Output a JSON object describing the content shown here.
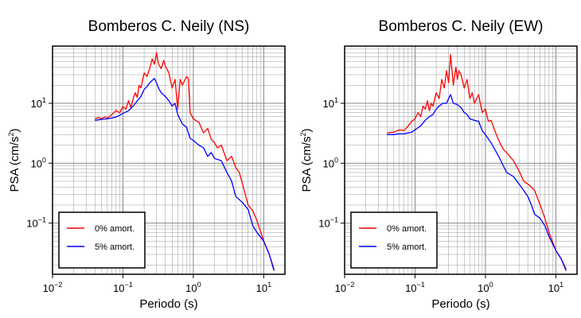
{
  "chart_data": [
    {
      "type": "line",
      "title": "Bomberos C. Neily (NS)",
      "xlabel": "Periodo (s)",
      "ylabel": "PSA (cm/s²)",
      "ylabel_main": "PSA (cm/s",
      "ylabel_sup": "2",
      "ylabel_close": ")",
      "xscale": "log",
      "yscale": "log",
      "xlim": [
        0.01,
        20
      ],
      "ylim": [
        0.014,
        90
      ],
      "grid": true,
      "legend_position": "bottom-left",
      "xticks": [
        {
          "base": "10",
          "exp": "−2",
          "value": 0.01
        },
        {
          "base": "10",
          "exp": "−1",
          "value": 0.1
        },
        {
          "base": "10",
          "exp": "0",
          "value": 1
        },
        {
          "base": "10",
          "exp": "1",
          "value": 10
        }
      ],
      "yticks": [
        {
          "base": "10",
          "exp": "−1",
          "value": 0.1
        },
        {
          "base": "10",
          "exp": "0",
          "value": 1
        },
        {
          "base": "10",
          "exp": "1",
          "value": 10
        }
      ],
      "series": [
        {
          "name": "0% amort.",
          "color": "#ff0000",
          "x": [
            0.04,
            0.045,
            0.05,
            0.055,
            0.06,
            0.07,
            0.08,
            0.09,
            0.1,
            0.11,
            0.12,
            0.13,
            0.14,
            0.15,
            0.16,
            0.17,
            0.18,
            0.2,
            0.22,
            0.24,
            0.26,
            0.28,
            0.3,
            0.32,
            0.35,
            0.38,
            0.4,
            0.45,
            0.5,
            0.55,
            0.6,
            0.65,
            0.7,
            0.8,
            0.85,
            0.9,
            1.0,
            1.2,
            1.4,
            1.6,
            1.8,
            2.0,
            2.2,
            2.5,
            3.0,
            3.5,
            4.0,
            4.5,
            5.0,
            6.0,
            7.0,
            8.0,
            10.0,
            12.0,
            14.0
          ],
          "values": [
            5.5,
            5.8,
            5.5,
            5.9,
            5.7,
            6.5,
            7.6,
            6.9,
            8.8,
            8.0,
            11.0,
            8.5,
            12.0,
            15.0,
            12.5,
            20.0,
            18.0,
            32.0,
            28.0,
            38.0,
            55.0,
            45.0,
            70.0,
            45.0,
            38.0,
            52.0,
            42.0,
            32.0,
            18.0,
            25.0,
            8.0,
            25.0,
            20.0,
            28.0,
            26.0,
            7.0,
            5.5,
            4.8,
            3.2,
            3.8,
            2.5,
            2.2,
            1.8,
            2.0,
            1.1,
            1.3,
            0.85,
            0.7,
            0.45,
            0.2,
            0.16,
            0.11,
            0.05,
            0.03,
            0.017
          ]
        },
        {
          "name": "5% amort.",
          "color": "#0000ff",
          "x": [
            0.04,
            0.05,
            0.06,
            0.07,
            0.08,
            0.09,
            0.1,
            0.12,
            0.14,
            0.16,
            0.18,
            0.2,
            0.22,
            0.24,
            0.26,
            0.28,
            0.3,
            0.32,
            0.35,
            0.4,
            0.45,
            0.5,
            0.55,
            0.6,
            0.7,
            0.8,
            0.9,
            1.0,
            1.2,
            1.4,
            1.6,
            1.8,
            2.0,
            2.5,
            3.0,
            3.5,
            4.0,
            5.0,
            6.0,
            7.0,
            8.0,
            10.0,
            12.0,
            14.0
          ],
          "values": [
            5.2,
            5.4,
            5.5,
            5.7,
            5.9,
            6.3,
            6.8,
            7.5,
            9.0,
            11.0,
            13.0,
            17.0,
            19.0,
            22.0,
            24.0,
            26.0,
            22.0,
            18.0,
            15.0,
            13.0,
            11.0,
            9.0,
            10.0,
            6.5,
            4.5,
            4.0,
            2.6,
            2.4,
            2.0,
            1.8,
            1.3,
            1.5,
            1.2,
            1.1,
            0.7,
            0.5,
            0.28,
            0.22,
            0.17,
            0.09,
            0.07,
            0.05,
            0.03,
            0.016
          ]
        }
      ]
    },
    {
      "type": "line",
      "title": "Bomberos C. Neily (EW)",
      "xlabel": "Periodo (s)",
      "ylabel": "PSA (cm/s²)",
      "ylabel_main": "PSA (cm/s",
      "ylabel_sup": "2",
      "ylabel_close": ")",
      "xscale": "log",
      "yscale": "log",
      "xlim": [
        0.01,
        20
      ],
      "ylim": [
        0.014,
        90
      ],
      "grid": true,
      "legend_position": "bottom-left",
      "xticks": [
        {
          "base": "10",
          "exp": "−2",
          "value": 0.01
        },
        {
          "base": "10",
          "exp": "−1",
          "value": 0.1
        },
        {
          "base": "10",
          "exp": "0",
          "value": 1
        },
        {
          "base": "10",
          "exp": "1",
          "value": 10
        }
      ],
      "yticks": [
        {
          "base": "10",
          "exp": "−1",
          "value": 0.1
        },
        {
          "base": "10",
          "exp": "0",
          "value": 1
        },
        {
          "base": "10",
          "exp": "1",
          "value": 10
        }
      ],
      "series": [
        {
          "name": "0% amort.",
          "color": "#ff0000",
          "x": [
            0.04,
            0.05,
            0.06,
            0.07,
            0.08,
            0.09,
            0.1,
            0.11,
            0.12,
            0.13,
            0.14,
            0.15,
            0.16,
            0.17,
            0.18,
            0.2,
            0.22,
            0.24,
            0.26,
            0.28,
            0.3,
            0.32,
            0.35,
            0.38,
            0.4,
            0.42,
            0.45,
            0.5,
            0.55,
            0.6,
            0.65,
            0.7,
            0.8,
            0.9,
            1.0,
            1.1,
            1.2,
            1.4,
            1.6,
            1.8,
            2.0,
            2.5,
            3.0,
            3.5,
            4.0,
            4.5,
            5.0,
            6.0,
            7.0,
            8.0,
            10.0,
            12.0,
            14.0
          ],
          "values": [
            3.2,
            3.3,
            3.6,
            3.5,
            4.2,
            5.0,
            5.5,
            7.0,
            6.0,
            9.0,
            8.0,
            11.0,
            7.5,
            10.0,
            9.0,
            15.0,
            12.0,
            25.0,
            18.0,
            35.0,
            22.0,
            65.0,
            20.0,
            40.0,
            25.0,
            35.0,
            30.0,
            18.0,
            25.0,
            12.0,
            15.0,
            10.0,
            14.0,
            7.0,
            8.0,
            5.0,
            5.2,
            3.2,
            2.2,
            1.7,
            1.5,
            1.1,
            0.75,
            0.5,
            0.45,
            0.4,
            0.35,
            0.2,
            0.12,
            0.07,
            0.035,
            0.025,
            0.017
          ]
        },
        {
          "name": "5% amort.",
          "color": "#0000ff",
          "x": [
            0.04,
            0.05,
            0.06,
            0.07,
            0.08,
            0.09,
            0.1,
            0.12,
            0.14,
            0.16,
            0.18,
            0.2,
            0.22,
            0.25,
            0.28,
            0.3,
            0.32,
            0.35,
            0.4,
            0.45,
            0.5,
            0.55,
            0.6,
            0.7,
            0.8,
            0.9,
            1.0,
            1.2,
            1.4,
            1.6,
            1.8,
            2.0,
            2.5,
            3.0,
            3.5,
            4.0,
            4.5,
            5.0,
            6.0,
            7.0,
            8.0,
            10.0,
            12.0,
            14.0
          ],
          "values": [
            3.0,
            3.0,
            3.1,
            3.1,
            3.2,
            3.3,
            3.6,
            4.2,
            5.2,
            6.0,
            6.5,
            8.0,
            9.0,
            10.0,
            10.0,
            12.0,
            14.0,
            10.0,
            9.5,
            8.5,
            7.0,
            6.5,
            5.5,
            5.2,
            5.0,
            3.5,
            3.0,
            2.2,
            1.6,
            1.2,
            0.9,
            0.7,
            0.6,
            0.45,
            0.35,
            0.28,
            0.2,
            0.14,
            0.12,
            0.09,
            0.06,
            0.035,
            0.025,
            0.016
          ]
        }
      ]
    }
  ]
}
